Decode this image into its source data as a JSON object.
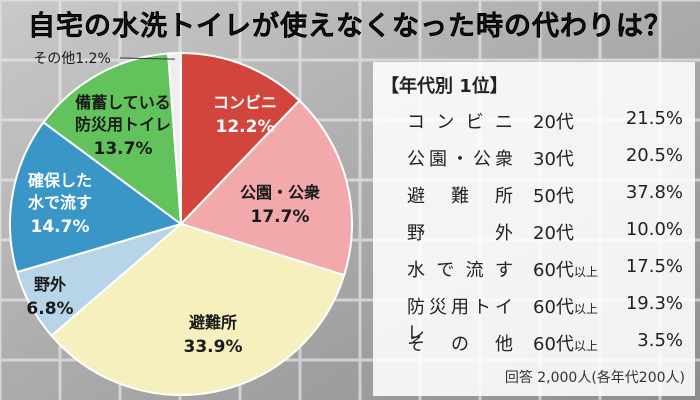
{
  "title": "自宅の水洗トイレが使えなくなった時の代わりは？",
  "chart_data": {
    "type": "pie",
    "start_angle_deg": 0,
    "direction": "clockwise",
    "slices": [
      {
        "label": "コンビニ",
        "value": 12.2,
        "value_text": "12.2%",
        "color": "#d2453c"
      },
      {
        "label": "公園・公衆",
        "value": 17.7,
        "value_text": "17.7%",
        "color": "#f2a9ac"
      },
      {
        "label": "避難所",
        "value": 33.9,
        "value_text": "33.9%",
        "color": "#f6efbe"
      },
      {
        "label": "野外",
        "value": 6.8,
        "value_text": "6.8%",
        "color": "#b8d4e8"
      },
      {
        "label": "確保した水で流す",
        "value": 14.7,
        "value_text": "14.7%",
        "color": "#3996c6"
      },
      {
        "label": "備蓄している防災用トイレ",
        "value": 13.7,
        "value_text": "13.7%",
        "color": "#62c25b"
      },
      {
        "label": "その他",
        "value": 1.2,
        "value_text": "1.2%",
        "color": "#eeeeee"
      }
    ]
  },
  "ranking": {
    "title": "【年代別 1位】",
    "rows": [
      {
        "place": "コンビニ",
        "age": "20代",
        "age_suffix": "",
        "pct": "21.5%"
      },
      {
        "place": "公園・公衆",
        "age": "30代",
        "age_suffix": "",
        "pct": "20.5%"
      },
      {
        "place": "避難所",
        "age": "50代",
        "age_suffix": "",
        "pct": "37.8%"
      },
      {
        "place": "野外",
        "age": "20代",
        "age_suffix": "",
        "pct": "10.0%"
      },
      {
        "place": "水で流す",
        "age": "60代",
        "age_suffix": "以上",
        "pct": "17.5%"
      },
      {
        "place": "防災用トイレ",
        "age": "60代",
        "age_suffix": "以上",
        "pct": "19.3%"
      },
      {
        "place": "その他",
        "age": "60代",
        "age_suffix": "以上",
        "pct": "3.5%"
      }
    ]
  },
  "footnote": "回答 2,000人(各年代200人)"
}
